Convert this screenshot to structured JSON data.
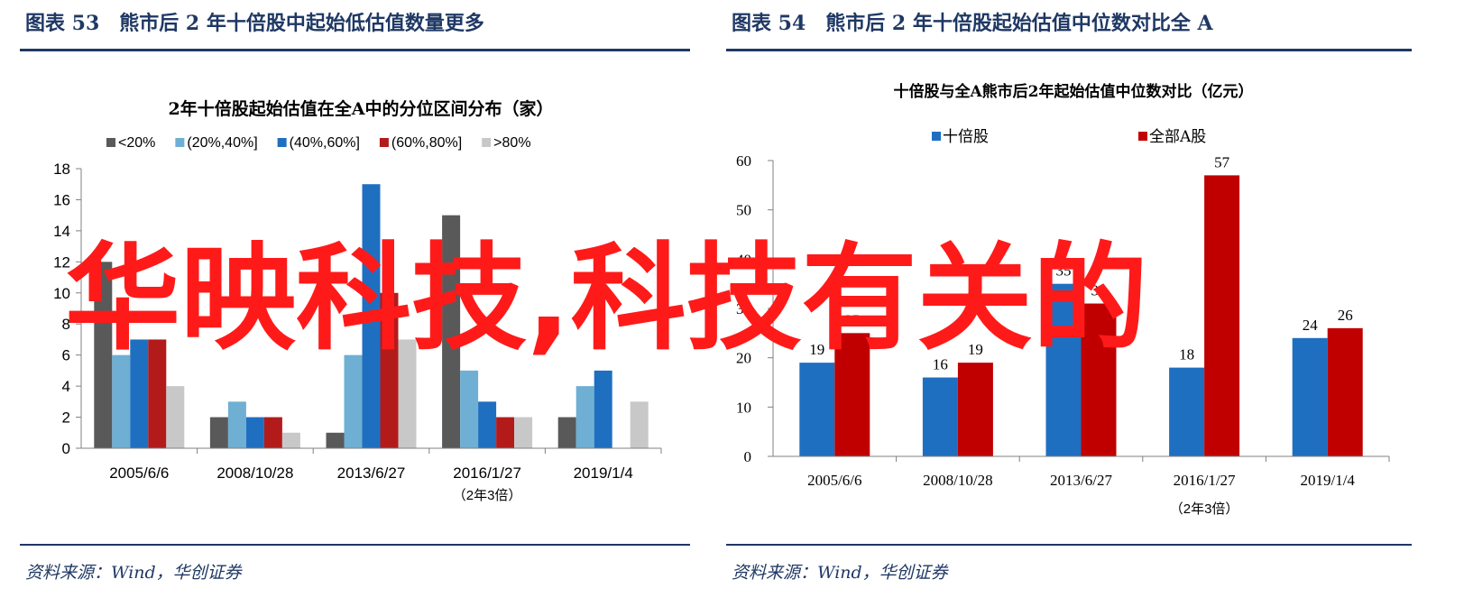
{
  "left": {
    "figure_title": "图表 53　熊市后 2 年十倍股中起始低估值数量更多",
    "source": "资料来源：Wind，华创证券"
  },
  "right": {
    "figure_title": "图表 54　熊市后 2 年十倍股起始估值中位数对比全 A",
    "source": "资料来源：Wind，华创证券"
  },
  "overlay_text": "华映科技,科技有关的",
  "chart_data": [
    {
      "type": "bar",
      "title": "2年十倍股起始估值在全A中的分位区间分布（家）",
      "categories": [
        "2005/6/6",
        "2008/10/28",
        "2013/6/27",
        "2016/1/27",
        "2019/1/4"
      ],
      "category_notes": [
        "",
        "",
        "",
        "（2年3倍）",
        ""
      ],
      "ylim": [
        0,
        18
      ],
      "yticks": [
        0,
        2,
        4,
        6,
        8,
        10,
        12,
        14,
        16,
        18
      ],
      "legend_position": "top",
      "series": [
        {
          "name": "<20%",
          "color": "#595959",
          "values": [
            12,
            2,
            1,
            15,
            2
          ]
        },
        {
          "name": "(20%,40%]",
          "color": "#6fafd3",
          "values": [
            6,
            3,
            6,
            5,
            4
          ]
        },
        {
          "name": "(40%,60%]",
          "color": "#1f6fc1",
          "values": [
            7,
            2,
            17,
            3,
            5
          ]
        },
        {
          "name": "(60%,80%]",
          "color": "#b31b1b",
          "values": [
            7,
            2,
            10,
            2,
            0
          ]
        },
        {
          "name": ">80%",
          "color": "#c8c8c8",
          "values": [
            4,
            1,
            7,
            2,
            3
          ]
        }
      ]
    },
    {
      "type": "bar",
      "title": "十倍股与全A熊市后2年起始估值中位数对比（亿元）",
      "categories": [
        "2005/6/6",
        "2008/10/28",
        "2013/6/27",
        "2016/1/27",
        "2019/1/4"
      ],
      "category_notes": [
        "",
        "",
        "",
        "（2年3倍）",
        ""
      ],
      "ylim": [
        0,
        60
      ],
      "yticks": [
        0,
        10,
        20,
        30,
        40,
        50,
        60
      ],
      "legend_position": "top",
      "series": [
        {
          "name": "十倍股",
          "color": "#1f6fc1",
          "values": [
            19,
            16,
            35,
            18,
            24
          ],
          "labels": [
            "19",
            "16",
            "35",
            "18",
            "24"
          ]
        },
        {
          "name": "全部A股",
          "color": "#c00000",
          "values": [
            25,
            19,
            31,
            57,
            26
          ],
          "labels": [
            "25",
            "19",
            "31",
            "57",
            "26"
          ]
        }
      ]
    }
  ]
}
